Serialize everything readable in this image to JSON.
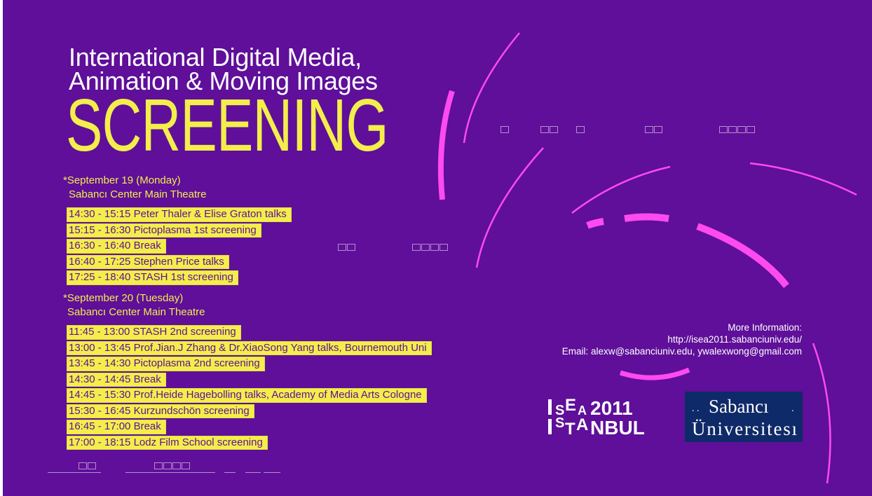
{
  "title": {
    "line1": "International Digital Media,",
    "line2": "Animation & Moving Images",
    "headline": "SCREENING"
  },
  "days": [
    {
      "date": "*September 19 (Monday)",
      "venue": "Sabancı Center Main Theatre",
      "events": [
        "14:30 - 15:15 Peter Thaler & Elise Graton talks",
        "15:15 - 16:30 Pictoplasma 1st screening",
        "16:30 - 16:40 Break",
        "16:40 - 17:25 Stephen Price talks",
        "17:25 - 18:40 STASH 1st screening"
      ]
    },
    {
      "date": "*September 20 (Tuesday)",
      "venue": "Sabancı Center Main Theatre",
      "events": [
        "11:45 - 13:00 STASH 2nd screening",
        "13:00 - 13:45 Prof.Jian.J Zhang & Dr.XiaoSong Yang talks, Bournemouth Uni",
        "13:45 - 14:30 Pictoplasma 2nd screening",
        "14:30 - 14:45 Break",
        "14:45 - 15:30 Prof.Heide Hagebolling talks, Academy of Media Arts Cologne",
        "15:30 - 16:45 Kurzundschön screening",
        "16:45 - 17:00 Break",
        "17:00 - 18:15 Lodz Film School screening"
      ]
    }
  ],
  "info": {
    "heading": "More Information:",
    "url": "http://isea2011.sabanciuniv.edu/",
    "email": "Email: alexw@sabanciuniv.edu, ywalexwong@gmail.com"
  },
  "logos": {
    "isea": "ISEA2011 ISTANBUL",
    "sabanci": "Sabancı Üniversitesi"
  },
  "colors": {
    "background": "#5f0f99",
    "accent_yellow": "#f3ee4b",
    "arc_magenta": "#ff4af0",
    "logo_navy": "#0f2a68"
  }
}
